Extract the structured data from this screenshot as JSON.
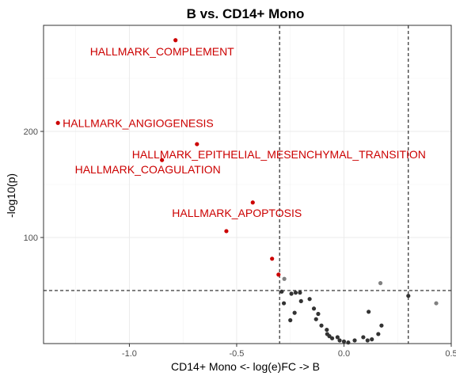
{
  "chart_data": {
    "type": "scatter",
    "title": "B vs. CD14+ Mono",
    "xlabel": "CD14+ Mono <- log(e)FC -> B",
    "ylabel": "-log10(p)",
    "xlim": [
      -1.4,
      0.5
    ],
    "ylim": [
      0,
      300
    ],
    "x_ticks": [
      -1.0,
      -0.5,
      0.0,
      0.5
    ],
    "x_tick_labels": [
      "-1.0",
      "-0.5",
      "0.0",
      "0.5"
    ],
    "y_ticks": [
      100,
      200
    ],
    "y_tick_labels": [
      "100",
      "200"
    ],
    "grid": true,
    "reference_lines": {
      "x": [
        -0.3,
        0.3
      ],
      "y": [
        50
      ]
    },
    "colors": {
      "highlight": "#cc0000",
      "normal": "#333333",
      "muted": "#808080",
      "label": "#cc0000"
    },
    "series": [
      {
        "color": "#cc0000",
        "points": [
          {
            "x": -0.785,
            "y": 286,
            "label": "HALLMARK_COMPLEMENT"
          },
          {
            "x": -1.333,
            "y": 208,
            "label": "HALLMARK_ANGIOGENESIS"
          },
          {
            "x": -0.685,
            "y": 188,
            "label": "HALLMARK_EPITHELIAL_MESENCHYMAL_TRANSITION"
          },
          {
            "x": -0.848,
            "y": 173,
            "label": "HALLMARK_COAGULATION"
          },
          {
            "x": -0.425,
            "y": 133,
            "label": "HALLMARK_APOPTOSIS"
          },
          {
            "x": -0.548,
            "y": 106
          },
          {
            "x": -0.335,
            "y": 80
          },
          {
            "x": -0.305,
            "y": 65
          }
        ]
      },
      {
        "color": "#808080",
        "points": [
          {
            "x": -0.278,
            "y": 61
          },
          {
            "x": 0.17,
            "y": 57
          },
          {
            "x": 0.43,
            "y": 38
          }
        ]
      },
      {
        "color": "#333333",
        "points": [
          {
            "x": -0.29,
            "y": 49
          },
          {
            "x": -0.245,
            "y": 47
          },
          {
            "x": -0.225,
            "y": 48
          },
          {
            "x": -0.205,
            "y": 48
          },
          {
            "x": -0.16,
            "y": 42
          },
          {
            "x": -0.2,
            "y": 40
          },
          {
            "x": -0.28,
            "y": 38
          },
          {
            "x": -0.14,
            "y": 33
          },
          {
            "x": -0.23,
            "y": 29
          },
          {
            "x": -0.12,
            "y": 28
          },
          {
            "x": -0.13,
            "y": 23
          },
          {
            "x": -0.25,
            "y": 22
          },
          {
            "x": -0.105,
            "y": 17
          },
          {
            "x": -0.08,
            "y": 13
          },
          {
            "x": -0.078,
            "y": 9
          },
          {
            "x": -0.068,
            "y": 7
          },
          {
            "x": -0.055,
            "y": 5
          },
          {
            "x": -0.03,
            "y": 6
          },
          {
            "x": -0.02,
            "y": 3
          },
          {
            "x": 0.0,
            "y": 2
          },
          {
            "x": 0.02,
            "y": 1
          },
          {
            "x": 0.05,
            "y": 3
          },
          {
            "x": 0.09,
            "y": 6
          },
          {
            "x": 0.11,
            "y": 3
          },
          {
            "x": 0.13,
            "y": 4
          },
          {
            "x": 0.16,
            "y": 9
          },
          {
            "x": 0.175,
            "y": 17
          },
          {
            "x": 0.115,
            "y": 30
          },
          {
            "x": 0.3,
            "y": 45
          }
        ]
      }
    ]
  }
}
